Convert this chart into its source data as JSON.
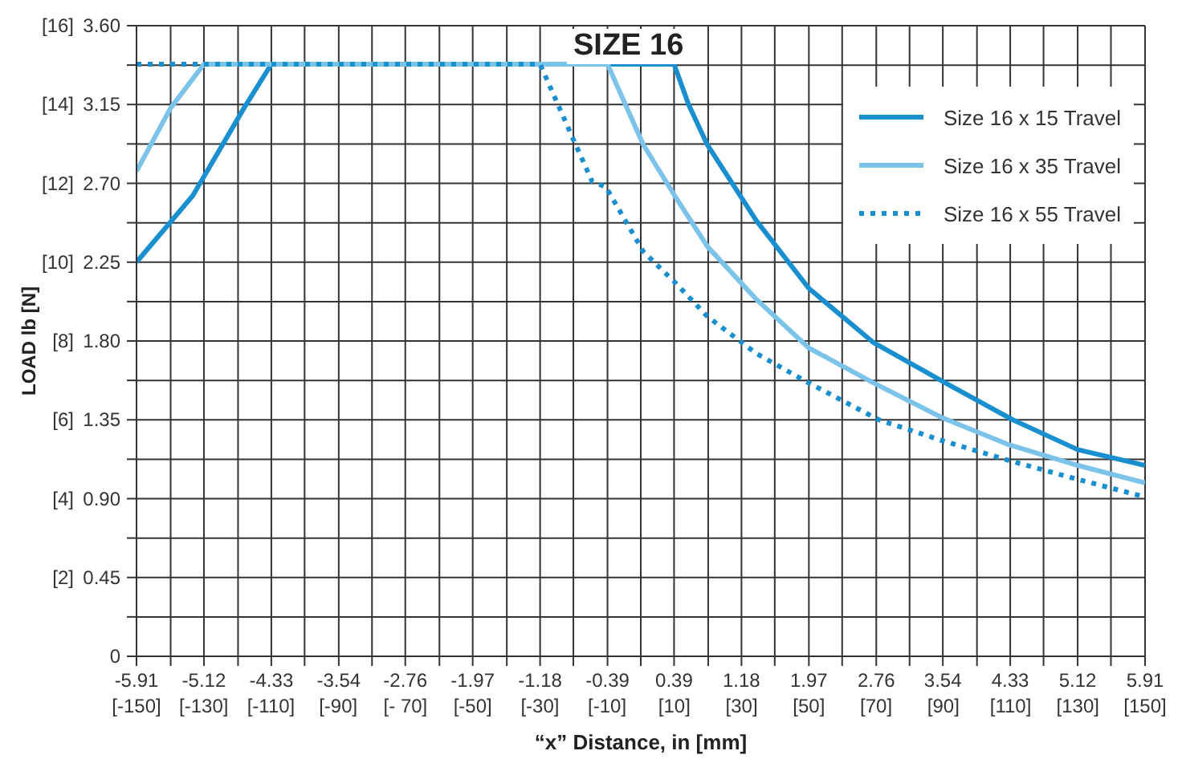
{
  "chart_data": {
    "type": "line",
    "title": "SIZE 16",
    "xlabel": "“x” Distance, in  [mm]",
    "y2label": "LOAD  lb  [N]",
    "xlim": [
      -5.91,
      5.91
    ],
    "xticks": [
      -5.91,
      {
        "value": -5.51,
        "label": null
      },
      -5.12,
      {
        "value": -4.72,
        "label": null
      },
      -4.33,
      {
        "value": -3.94,
        "label": null
      },
      -3.54,
      {
        "value": -3.15,
        "label": null
      },
      -2.76,
      {
        "value": -2.36,
        "label": null
      },
      -1.97,
      {
        "value": -1.57,
        "label": null
      },
      -1.18,
      {
        "value": -0.79,
        "label": null
      },
      -0.39,
      {
        "value": 0,
        "label": null
      },
      0.39,
      {
        "value": 0.79,
        "label": null
      },
      1.18,
      {
        "value": 1.57,
        "label": null
      },
      1.97,
      {
        "value": 2.36,
        "label": null
      },
      2.76,
      {
        "value": 3.15,
        "label": null
      },
      3.54,
      {
        "value": 3.94,
        "label": null
      },
      4.33,
      {
        "value": 4.72,
        "label": null
      },
      5.12,
      {
        "value": 5.51,
        "label": null
      },
      5.91
    ],
    "x2lim": [
      -150,
      150
    ],
    "x2ticks": [
      {
        "value": -150,
        "label": "[-150]"
      },
      {
        "value": -130,
        "label": "[-130]"
      },
      {
        "value": -110,
        "label": "[-110]"
      },
      {
        "value": -90,
        "label": "[-90]"
      },
      {
        "value": -70,
        "label": "[- 70]"
      },
      {
        "value": -50,
        "label": "[-50]"
      },
      {
        "value": -30,
        "label": "[-30]"
      },
      {
        "value": -10,
        "label": "[-10]"
      },
      {
        "value": 10,
        "label": "[10]"
      },
      {
        "value": 30,
        "label": "[30]"
      },
      {
        "value": 50,
        "label": "[50]"
      },
      {
        "value": 70,
        "label": "[70]"
      },
      {
        "value": 90,
        "label": "[90]"
      },
      {
        "value": 110,
        "label": "[110]"
      },
      {
        "value": 130,
        "label": "[130]"
      },
      {
        "value": 150,
        "label": "[150]"
      }
    ],
    "ylim": [
      0,
      3.6
    ],
    "yticks": [
      0,
      {
        "value": 0.225,
        "label": null
      },
      {
        "value": 0.45,
        "label": "0.45"
      },
      {
        "value": 0.675,
        "label": null
      },
      {
        "value": 0.9,
        "label": "0.90"
      },
      {
        "value": 1.125,
        "label": null
      },
      {
        "value": 1.35,
        "label": "1.35"
      },
      {
        "value": 1.575,
        "label": null
      },
      {
        "value": 1.8,
        "label": "1.80"
      },
      {
        "value": 2.025,
        "label": null
      },
      {
        "value": 2.25,
        "label": "2.25"
      },
      {
        "value": 2.475,
        "label": null
      },
      {
        "value": 2.7,
        "label": "2.70"
      },
      {
        "value": 2.925,
        "label": null
      },
      {
        "value": 3.15,
        "label": "3.15"
      },
      {
        "value": 3.375,
        "label": null
      },
      {
        "value": 3.6,
        "label": "3.60"
      }
    ],
    "y2lim": [
      0,
      16
    ],
    "y2ticks": [
      {
        "value": 2,
        "label": "[2]"
      },
      {
        "value": 4,
        "label": "[4]"
      },
      {
        "value": 6,
        "label": "[6]"
      },
      {
        "value": 8,
        "label": "[8]"
      },
      {
        "value": 10,
        "label": "[10]"
      },
      {
        "value": 12,
        "label": "[12]"
      },
      {
        "value": 14,
        "label": "[14]"
      },
      {
        "value": 16,
        "label": "[16]"
      }
    ],
    "grid": true,
    "legend": "top right",
    "marker": "none",
    "series": [
      {
        "name": "Size 16 x 15 Travel",
        "color": "#1a8fd0",
        "line_style": "solid",
        "x": [
          -5.91,
          -5.51,
          -5.25,
          -4.65,
          -4.33,
          0.39,
          0.56,
          0.78,
          1.35,
          1.97,
          2.73,
          3.61,
          4.36,
          5.12,
          5.91
        ],
        "values": [
          2.25,
          2.48,
          2.63,
          3.13,
          3.38,
          3.38,
          3.15,
          2.92,
          2.49,
          2.1,
          1.79,
          1.55,
          1.35,
          1.18,
          1.09
        ]
      },
      {
        "name": "Size 16 x 35 Travel",
        "color": "#7cc3ea",
        "line_style": "solid",
        "x": [
          -5.91,
          -5.51,
          -5.12,
          -0.39,
          0.03,
          0.41,
          0.78,
          1.35,
          1.97,
          2.73,
          3.54,
          4.3,
          5.12,
          5.91
        ],
        "values": [
          2.77,
          3.13,
          3.38,
          3.38,
          2.92,
          2.62,
          2.34,
          2.04,
          1.76,
          1.56,
          1.36,
          1.21,
          1.09,
          0.99
        ]
      },
      {
        "name": "Size 16 x 55 Travel",
        "color": "#1a8fd0",
        "line_style": "dotted",
        "x": [
          -5.91,
          -1.18,
          -0.79,
          -0.57,
          -0.41,
          0.03,
          0.41,
          0.78,
          1.35,
          1.97,
          2.79,
          3.54,
          4.3,
          5.12,
          5.91
        ],
        "values": [
          3.38,
          3.38,
          2.95,
          2.71,
          2.68,
          2.31,
          2.13,
          1.94,
          1.73,
          1.56,
          1.35,
          1.23,
          1.12,
          1.01,
          0.91
        ]
      }
    ]
  }
}
